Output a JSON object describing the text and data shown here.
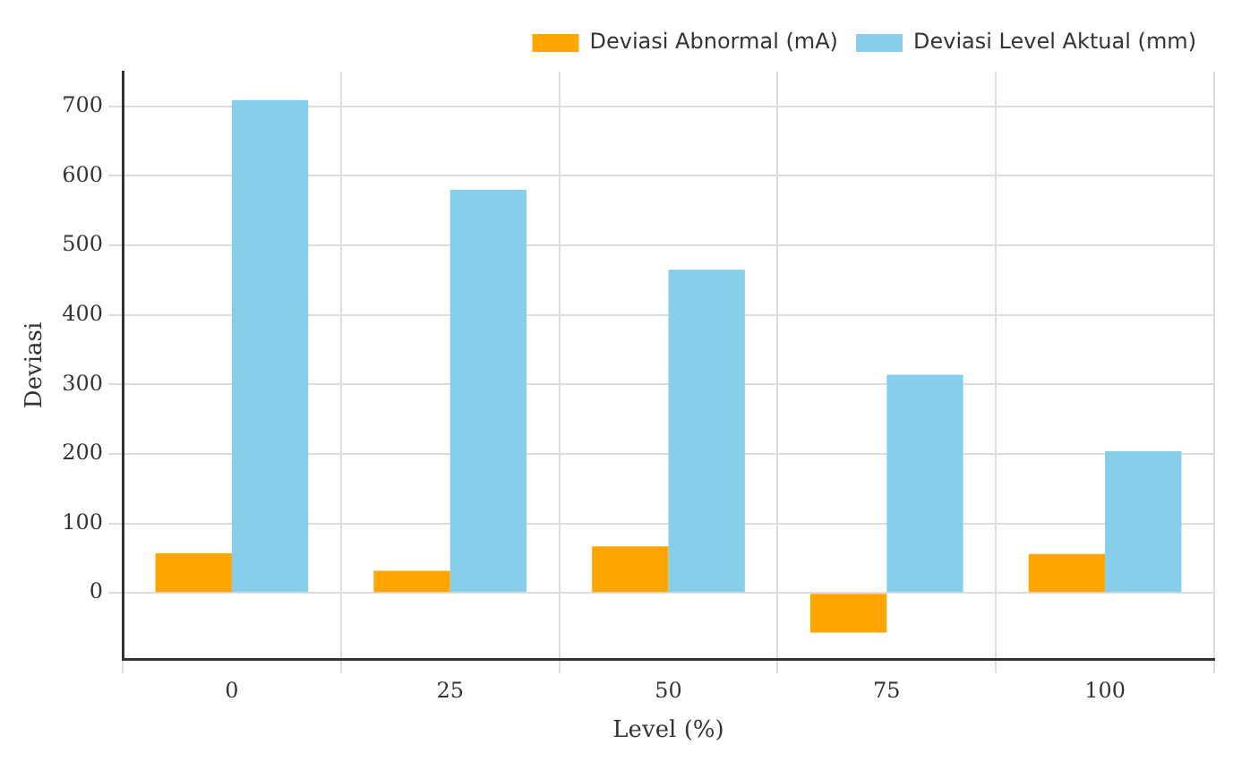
{
  "chart_data": {
    "type": "bar",
    "xlabel": "Level (%)",
    "ylabel": "Deviasi",
    "categories": [
      "0",
      "25",
      "50",
      "75",
      "100"
    ],
    "series": [
      {
        "name": "Deviasi Abnormal (mA)",
        "color": "#ffa500",
        "values": [
          57,
          32,
          67,
          -57,
          56
        ]
      },
      {
        "name": "Deviasi Level Aktual (mm)",
        "color": "#87ceeb",
        "values": [
          709,
          580,
          465,
          314,
          204
        ]
      }
    ],
    "ylim": [
      -95,
      750
    ],
    "yticks": [
      0,
      100,
      200,
      300,
      400,
      500,
      600,
      700
    ],
    "grid": true,
    "legend": "top right"
  }
}
